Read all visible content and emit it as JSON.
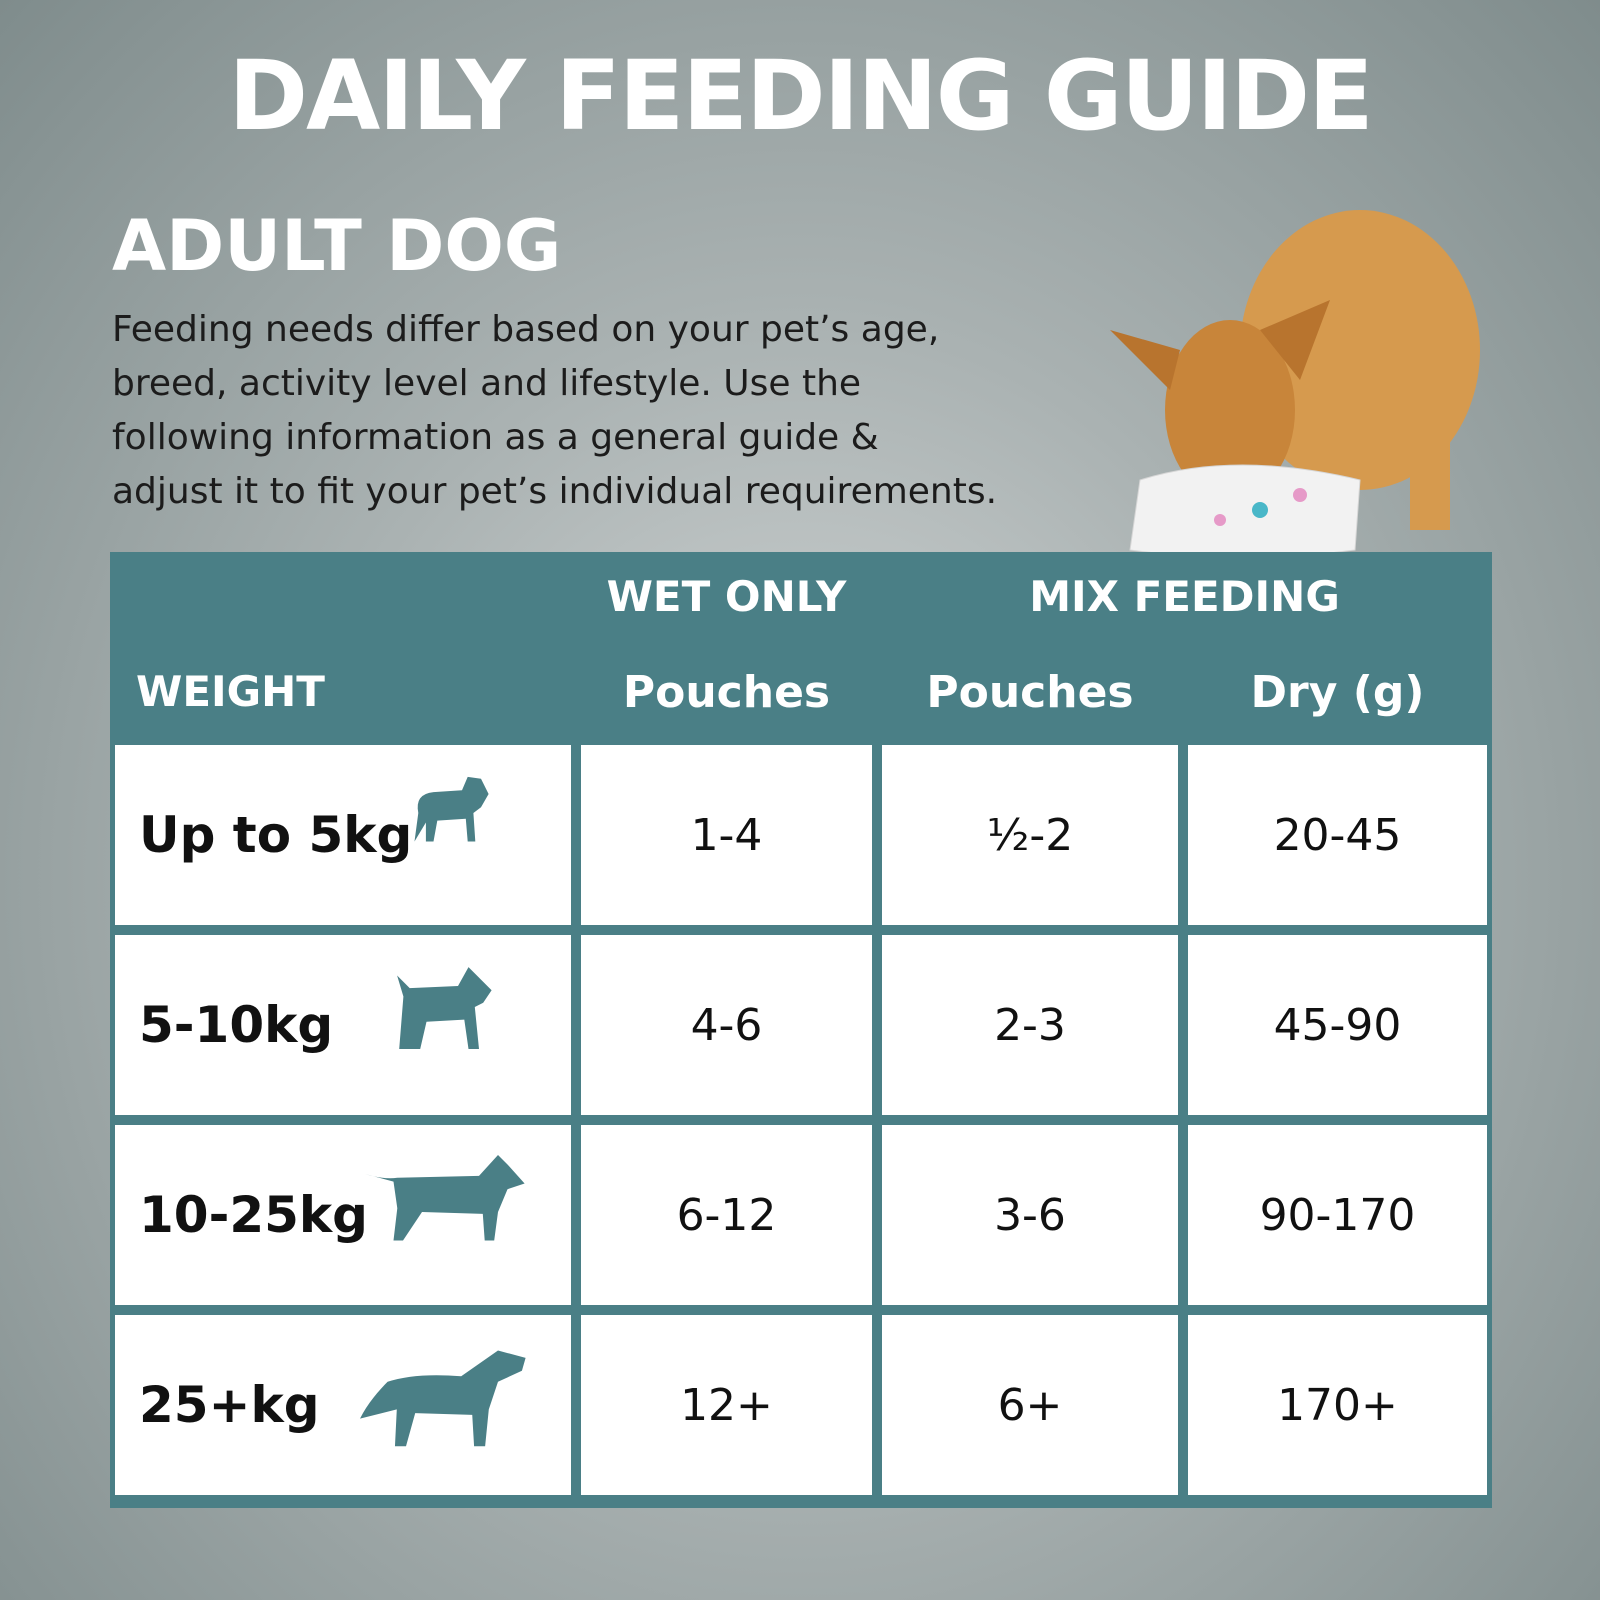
{
  "header": {
    "title": "DAILY FEEDING GUIDE",
    "subtitle": "ADULT DOG",
    "description_lines": [
      "Feeding needs differ based on your pet’s age,",
      "breed, activity level and lifestyle. Use the",
      "following information as a general guide &",
      "adjust it to fit your pet’s individual requirements."
    ]
  },
  "table": {
    "group_headers": [
      "WET ONLY",
      "MIX FEEDING"
    ],
    "columns": [
      "WEIGHT",
      "Pouches",
      "Pouches",
      "Dry (g)"
    ],
    "rows": [
      [
        "Up to 5kg",
        "1-4",
        "½-2",
        "20-45"
      ],
      [
        "5-10kg",
        "4-6",
        "2-3",
        "45-90"
      ],
      [
        "10-25kg",
        "6-12",
        "3-6",
        "90-170"
      ],
      [
        "25+kg",
        "12+",
        "6+",
        "170+"
      ]
    ]
  }
}
